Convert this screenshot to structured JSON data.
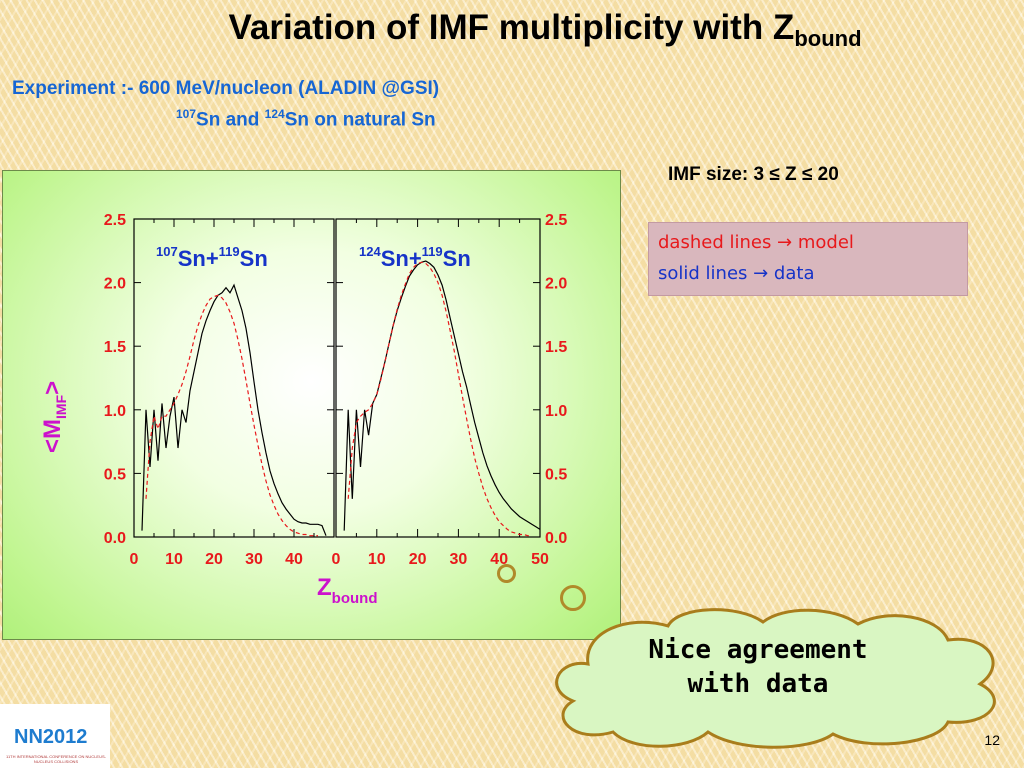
{
  "slide": {
    "title_main": "Variation of IMF multiplicity with Z",
    "title_sub": "bound",
    "experiment_line": "Experiment :- 600 MeV/nucleon (ALADIN @GSI)",
    "sn_line": {
      "m1": "107",
      "t1": "Sn and ",
      "m2": "124",
      "t2": "Sn on natural Sn"
    },
    "imf_size": "IMF size: 3 ≤ Z ≤ 20",
    "legend": {
      "dashed": "dashed lines → model",
      "solid": "solid lines → data"
    },
    "callout": {
      "line1": "Nice agreement",
      "line2": "with data"
    },
    "logo_text": "NN2012",
    "logo_subtext": "11TH INTERNATIONAL CONFERENCE ON NUCLEUS-NUCLEUS COLLISIONS",
    "page_number": "12"
  },
  "colors": {
    "title": "#000000",
    "experiment": "#1666d4",
    "tick_labels": "#e8191c",
    "axis_labels": "#cc11cc",
    "panel_labels": "#1633c8",
    "model": "#e8191c",
    "data": "#000000"
  },
  "chart_data": [
    {
      "type": "line",
      "panel": "left",
      "label": {
        "m1": "107",
        "n1": "Sn+",
        "m2": "119",
        "n2": "Sn"
      },
      "xlabel": "Z",
      "xlabel_sub": "bound",
      "ylabel": "<M",
      "ylabel_sub": "IMF",
      "ylabel_end": ">",
      "xlim": [
        0,
        50
      ],
      "ylim": [
        0,
        2.5
      ],
      "xticks": [
        0,
        10,
        20,
        30,
        40
      ],
      "yticks": [
        "0.0",
        "0.5",
        "1.0",
        "1.5",
        "2.0",
        "2.5"
      ],
      "series": [
        {
          "style": "solid",
          "x": [
            2,
            3,
            4,
            5,
            6,
            7,
            8,
            9,
            10,
            11,
            12,
            13,
            14,
            15,
            16,
            17,
            18,
            19,
            20,
            21,
            22,
            23,
            24,
            25,
            26,
            27,
            28,
            29,
            30,
            31,
            32,
            33,
            34,
            35,
            36,
            37,
            38,
            39,
            40,
            41,
            42,
            43,
            44,
            45,
            46,
            47,
            48
          ],
          "y": [
            0.05,
            1.0,
            0.55,
            1.0,
            0.6,
            1.05,
            0.7,
            0.95,
            1.1,
            0.7,
            1.0,
            0.9,
            1.15,
            1.3,
            1.45,
            1.6,
            1.7,
            1.78,
            1.85,
            1.9,
            1.92,
            1.96,
            1.92,
            1.98,
            1.88,
            1.78,
            1.64,
            1.45,
            1.22,
            1.0,
            0.82,
            0.66,
            0.52,
            0.42,
            0.34,
            0.27,
            0.22,
            0.18,
            0.14,
            0.12,
            0.11,
            0.11,
            0.1,
            0.1,
            0.1,
            0.09,
            0.01
          ]
        },
        {
          "style": "dashed",
          "x": [
            3,
            4,
            5,
            6,
            7,
            8,
            9,
            10,
            11,
            12,
            13,
            14,
            15,
            16,
            17,
            18,
            19,
            20,
            21,
            22,
            23,
            24,
            25,
            26,
            27,
            28,
            29,
            30,
            31,
            32,
            33,
            34,
            35,
            36,
            37,
            38,
            39,
            40,
            41,
            42,
            43,
            44,
            45,
            46
          ],
          "y": [
            0.3,
            0.75,
            0.95,
            0.85,
            0.95,
            0.95,
            1.0,
            1.05,
            1.12,
            1.2,
            1.3,
            1.42,
            1.55,
            1.66,
            1.75,
            1.82,
            1.87,
            1.89,
            1.9,
            1.88,
            1.84,
            1.77,
            1.68,
            1.55,
            1.4,
            1.23,
            1.05,
            0.88,
            0.72,
            0.57,
            0.44,
            0.33,
            0.25,
            0.18,
            0.13,
            0.09,
            0.06,
            0.04,
            0.03,
            0.02,
            0.02,
            0.01,
            0.01,
            0.01
          ]
        }
      ]
    },
    {
      "type": "line",
      "panel": "right",
      "label": {
        "m1": "124",
        "n1": "Sn+",
        "m2": "119",
        "n2": "Sn"
      },
      "xlim": [
        0,
        50
      ],
      "ylim": [
        0,
        2.5
      ],
      "xticks": [
        0,
        10,
        20,
        30,
        40,
        50
      ],
      "yticks": [
        "0.0",
        "0.5",
        "1.0",
        "1.5",
        "2.0",
        "2.5"
      ],
      "series": [
        {
          "style": "solid",
          "x": [
            2,
            3,
            4,
            5,
            6,
            7,
            8,
            9,
            10,
            11,
            12,
            13,
            14,
            15,
            16,
            17,
            18,
            19,
            20,
            21,
            22,
            23,
            24,
            25,
            26,
            27,
            28,
            29,
            30,
            31,
            32,
            33,
            34,
            35,
            36,
            37,
            38,
            39,
            40,
            41,
            42,
            43,
            44,
            45,
            46,
            47,
            48,
            49,
            50
          ],
          "y": [
            0.05,
            1.0,
            0.3,
            1.0,
            0.55,
            1.0,
            0.8,
            1.05,
            1.12,
            1.25,
            1.38,
            1.52,
            1.66,
            1.78,
            1.88,
            1.97,
            2.05,
            2.1,
            2.14,
            2.16,
            2.17,
            2.15,
            2.12,
            2.06,
            1.98,
            1.86,
            1.72,
            1.58,
            1.44,
            1.3,
            1.18,
            1.04,
            0.9,
            0.78,
            0.66,
            0.56,
            0.48,
            0.41,
            0.35,
            0.3,
            0.26,
            0.22,
            0.19,
            0.16,
            0.14,
            0.12,
            0.1,
            0.08,
            0.06
          ]
        },
        {
          "style": "dashed",
          "x": [
            3,
            4,
            5,
            6,
            7,
            8,
            9,
            10,
            11,
            12,
            13,
            14,
            15,
            16,
            17,
            18,
            19,
            20,
            21,
            22,
            23,
            24,
            25,
            26,
            27,
            28,
            29,
            30,
            31,
            32,
            33,
            34,
            35,
            36,
            37,
            38,
            39,
            40,
            41,
            42,
            43,
            44,
            45,
            46,
            47,
            48
          ],
          "y": [
            0.3,
            0.7,
            0.9,
            0.95,
            0.98,
            1.0,
            1.05,
            1.12,
            1.24,
            1.38,
            1.52,
            1.66,
            1.79,
            1.9,
            1.99,
            2.07,
            2.12,
            2.15,
            2.16,
            2.15,
            2.12,
            2.07,
            2.0,
            1.9,
            1.77,
            1.62,
            1.46,
            1.28,
            1.1,
            0.93,
            0.77,
            0.62,
            0.5,
            0.39,
            0.3,
            0.23,
            0.17,
            0.12,
            0.09,
            0.06,
            0.04,
            0.03,
            0.02,
            0.02,
            0.01,
            0.01
          ]
        }
      ]
    }
  ]
}
